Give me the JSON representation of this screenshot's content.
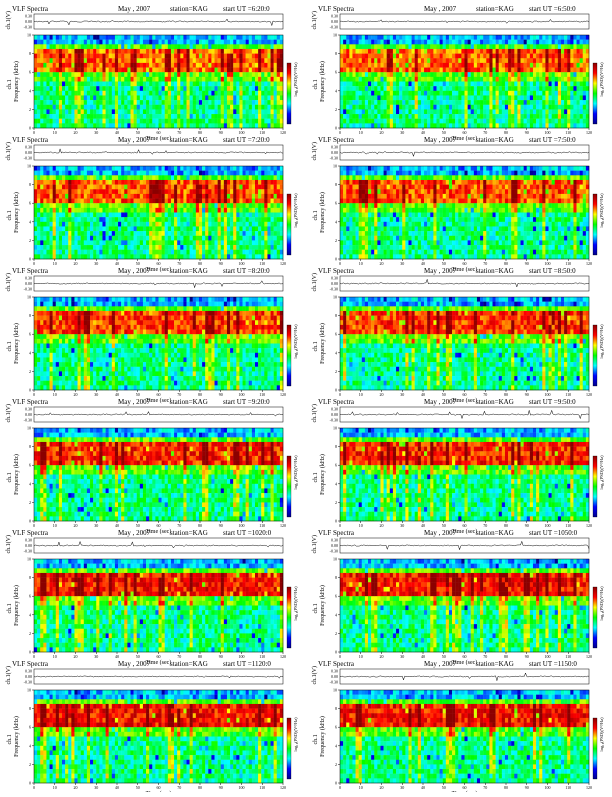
{
  "defaults": {
    "header_left": "VLF Spectra",
    "date": "May , 2007",
    "station": "station=KAG",
    "start_prefix": "start  UT =",
    "top_axis_label": "ch.1(V)",
    "freq_label_left": "ch.1",
    "freq_label_right": "Frequency (kHz)",
    "colorbar_label": "log₁₀(PSD)(V²/Hz)",
    "x_label": "Time (sec)",
    "top_ticks": [
      "0.30",
      "0.00",
      "-0.30"
    ],
    "freq_ticks": [
      "0",
      "2",
      "4",
      "6",
      "8",
      "10"
    ],
    "x_ticks": [
      "0",
      "10",
      "20",
      "30",
      "40",
      "50",
      "60",
      "70",
      "80",
      "90",
      "100",
      "110",
      "120"
    ]
  },
  "chart_data": [
    {
      "type": "heatmap",
      "title": "VLF Spectra  May , 2007  station=KAG  start UT = 6:20:0",
      "start_time": "6:20:0",
      "x_range": [
        0,
        120
      ],
      "y_range_khz": [
        0,
        10
      ],
      "top_range_v": [
        -0.3,
        0.3
      ],
      "colormap": [
        "#00008b",
        "#0000ff",
        "#00ffff",
        "#00ff00",
        "#ffff00",
        "#ff0000",
        "#8b0000"
      ]
    },
    {
      "type": "heatmap",
      "title": "VLF Spectra  May , 2007  station=KAG  start UT = 6:50:0",
      "start_time": "6:50:0",
      "x_range": [
        0,
        120
      ],
      "y_range_khz": [
        0,
        10
      ],
      "top_range_v": [
        -0.3,
        0.3
      ],
      "colormap": [
        "#00008b",
        "#0000ff",
        "#00ffff",
        "#00ff00",
        "#ffff00",
        "#ff0000",
        "#8b0000"
      ]
    },
    {
      "type": "heatmap",
      "title": "VLF Spectra  May , 2007  station=KAG  start UT = 7:20:0",
      "start_time": "7:20:0",
      "x_range": [
        0,
        120
      ],
      "y_range_khz": [
        0,
        10
      ],
      "top_range_v": [
        -0.3,
        0.3
      ],
      "colormap": [
        "#00008b",
        "#0000ff",
        "#00ffff",
        "#00ff00",
        "#ffff00",
        "#ff0000",
        "#8b0000"
      ]
    },
    {
      "type": "heatmap",
      "title": "VLF Spectra  May , 2007  station=KAG  start UT = 7:50:0",
      "start_time": "7:50:0",
      "x_range": [
        0,
        120
      ],
      "y_range_khz": [
        0,
        10
      ],
      "top_range_v": [
        -0.3,
        0.3
      ],
      "colormap": [
        "#00008b",
        "#0000ff",
        "#00ffff",
        "#00ff00",
        "#ffff00",
        "#ff0000",
        "#8b0000"
      ]
    },
    {
      "type": "heatmap",
      "title": "VLF Spectra  May , 2007  station=KAG  start UT = 8:20:0",
      "start_time": "8:20:0",
      "x_range": [
        0,
        120
      ],
      "y_range_khz": [
        0,
        10
      ],
      "top_range_v": [
        -0.3,
        0.3
      ],
      "colormap": [
        "#00008b",
        "#0000ff",
        "#00ffff",
        "#00ff00",
        "#ffff00",
        "#ff0000",
        "#8b0000"
      ]
    },
    {
      "type": "heatmap",
      "title": "VLF Spectra  May , 2007  station=KAG  start UT = 8:50:0",
      "start_time": "8:50:0",
      "x_range": [
        0,
        120
      ],
      "y_range_khz": [
        0,
        10
      ],
      "top_range_v": [
        -0.3,
        0.3
      ],
      "colormap": [
        "#00008b",
        "#0000ff",
        "#00ffff",
        "#00ff00",
        "#ffff00",
        "#ff0000",
        "#8b0000"
      ]
    },
    {
      "type": "heatmap",
      "title": "VLF Spectra  May , 2007  station=KAG  start UT = 9:20:0",
      "start_time": "9:20:0",
      "x_range": [
        0,
        120
      ],
      "y_range_khz": [
        0,
        10
      ],
      "top_range_v": [
        -0.3,
        0.3
      ],
      "colormap": [
        "#00008b",
        "#0000ff",
        "#00ffff",
        "#00ff00",
        "#ffff00",
        "#ff0000",
        "#8b0000"
      ]
    },
    {
      "type": "heatmap",
      "title": "VLF Spectra  May , 2007  station=KAG  start UT = 9:50:0",
      "start_time": "9:50:0",
      "x_range": [
        0,
        120
      ],
      "y_range_khz": [
        0,
        10
      ],
      "top_range_v": [
        -0.3,
        0.3
      ],
      "colormap": [
        "#00008b",
        "#0000ff",
        "#00ffff",
        "#00ff00",
        "#ffff00",
        "#ff0000",
        "#8b0000"
      ]
    },
    {
      "type": "heatmap",
      "title": "VLF Spectra  May , 2007  station=KAG  start UT =1020:0",
      "start_time": "1020:0",
      "x_range": [
        0,
        120
      ],
      "y_range_khz": [
        0,
        10
      ],
      "top_range_v": [
        -0.3,
        0.3
      ],
      "colormap": [
        "#00008b",
        "#0000ff",
        "#00ffff",
        "#00ff00",
        "#ffff00",
        "#ff0000",
        "#8b0000"
      ]
    },
    {
      "type": "heatmap",
      "title": "VLF Spectra  May , 2007  station=KAG  start UT =1050:0",
      "start_time": "1050:0",
      "x_range": [
        0,
        120
      ],
      "y_range_khz": [
        0,
        10
      ],
      "top_range_v": [
        -0.3,
        0.3
      ],
      "colormap": [
        "#00008b",
        "#0000ff",
        "#00ffff",
        "#00ff00",
        "#ffff00",
        "#ff0000",
        "#8b0000"
      ]
    },
    {
      "type": "heatmap",
      "title": "VLF Spectra  May , 2007  station=KAG  start UT =1120:0",
      "start_time": "1120:0",
      "x_range": [
        0,
        120
      ],
      "y_range_khz": [
        0,
        10
      ],
      "top_range_v": [
        -0.3,
        0.3
      ],
      "colormap": [
        "#00008b",
        "#0000ff",
        "#00ffff",
        "#00ff00",
        "#ffff00",
        "#ff0000",
        "#8b0000"
      ]
    },
    {
      "type": "heatmap",
      "title": "VLF Spectra  May , 2007  station=KAG  start UT =1150:0",
      "start_time": "1150:0",
      "x_range": [
        0,
        120
      ],
      "y_range_khz": [
        0,
        10
      ],
      "top_range_v": [
        -0.3,
        0.3
      ],
      "colormap": [
        "#00008b",
        "#0000ff",
        "#00ffff",
        "#00ff00",
        "#ffff00",
        "#ff0000",
        "#8b0000"
      ]
    }
  ]
}
